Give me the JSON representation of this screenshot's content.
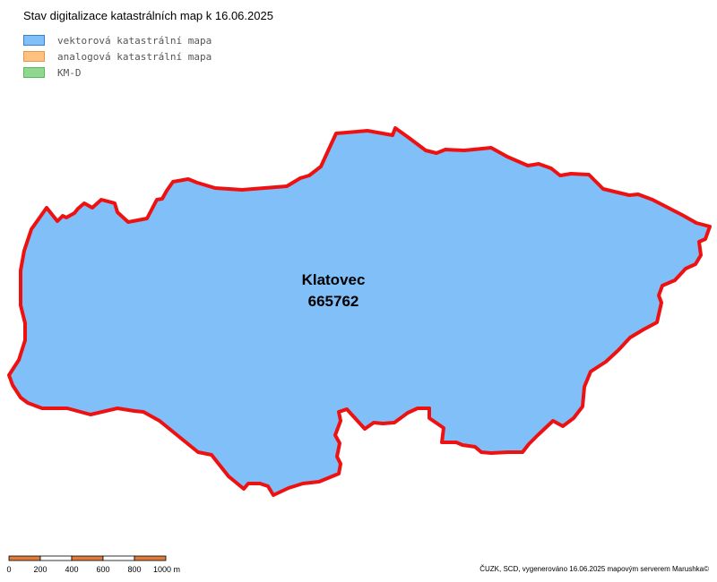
{
  "header": {
    "title": "Stav digitalizace katastrálních map k 16.06.2025"
  },
  "legend": {
    "items": [
      "vektorová katastrální mapa",
      "analogová katastrální mapa",
      "KM-D"
    ]
  },
  "map": {
    "area_name": "Klatovec",
    "area_code": "665762"
  },
  "scale_bar": {
    "labels": [
      "0",
      "200",
      "400",
      "600",
      "800",
      "1000 m"
    ]
  },
  "footer": {
    "credit": "ČUZK, SCD, vygenerováno 16.06.2025 mapovým serverem Marushka©"
  }
}
